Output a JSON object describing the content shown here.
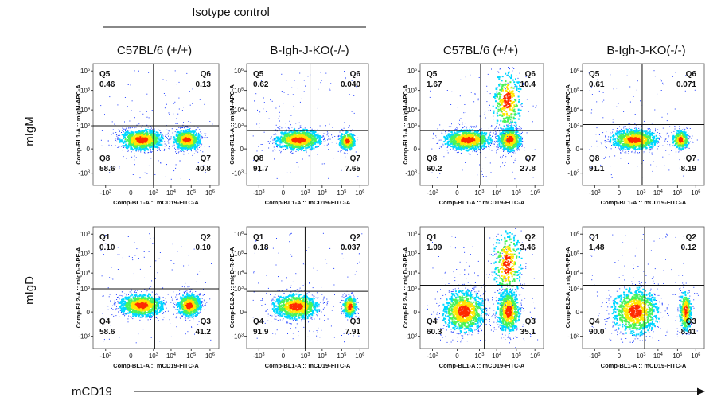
{
  "headers": {
    "group_title": "Isotype control",
    "columns": [
      "C57BL/6 (+/+)",
      "B-Igh-J-KO(-/-)",
      "C57BL/6 (+/+)",
      "B-Igh-J-KO(-/-)"
    ]
  },
  "row_labels": [
    "mIgM",
    "mIgD"
  ],
  "x_axis_arrow_label": "mCD19",
  "colors": {
    "density_low": "#1f3dff",
    "density_mid": "#00d7ff",
    "density_mid2": "#49f35a",
    "density_high": "#ffe600",
    "density_peak": "#ff2a00",
    "gate_line": "#111111"
  },
  "chart_data": [
    {
      "type": "scatter",
      "row": "mIgM",
      "column": 0,
      "xlabel": "Comp-BL1-A :: mCD19-FITC-A",
      "ylabel": "Comp-RL1-A :: mIgM-APC-A",
      "quadrants": [
        {
          "name": "Q5",
          "value": "0.46"
        },
        {
          "name": "Q6",
          "value": "0.13"
        },
        {
          "name": "Q8",
          "value": "58.6"
        },
        {
          "name": "Q7",
          "value": "40.8"
        }
      ]
    },
    {
      "type": "scatter",
      "row": "mIgM",
      "column": 1,
      "xlabel": "Comp-BL1-A :: mCD19-FITC-A",
      "ylabel": "Comp-RL1-A :: mIgM-APC-A",
      "quadrants": [
        {
          "name": "Q5",
          "value": "0.62"
        },
        {
          "name": "Q6",
          "value": "0.040"
        },
        {
          "name": "Q8",
          "value": "91.7"
        },
        {
          "name": "Q7",
          "value": "7.65"
        }
      ]
    },
    {
      "type": "scatter",
      "row": "mIgM",
      "column": 2,
      "xlabel": "Comp-BL1-A :: mCD19-FITC-A",
      "ylabel": "Comp-RL1-A :: mIgM-APC-A",
      "quadrants": [
        {
          "name": "Q5",
          "value": "1.67"
        },
        {
          "name": "Q6",
          "value": "10.4"
        },
        {
          "name": "Q8",
          "value": "60.2"
        },
        {
          "name": "Q7",
          "value": "27.8"
        }
      ]
    },
    {
      "type": "scatter",
      "row": "mIgM",
      "column": 3,
      "xlabel": "Comp-BL1-A :: mCD19-FITC-A",
      "ylabel": "Comp-RL1-A :: mIgM-APC-A",
      "quadrants": [
        {
          "name": "Q5",
          "value": "0.61"
        },
        {
          "name": "Q6",
          "value": "0.071"
        },
        {
          "name": "Q8",
          "value": "91.1"
        },
        {
          "name": "Q7",
          "value": "8.19"
        }
      ]
    },
    {
      "type": "scatter",
      "row": "mIgD",
      "column": 0,
      "xlabel": "Comp-BL1-A :: mCD19-FITC-A",
      "ylabel": "Comp-BL2-A :: mIgD-R-PE-A",
      "quadrants": [
        {
          "name": "Q1",
          "value": "0.10"
        },
        {
          "name": "Q2",
          "value": "0.10"
        },
        {
          "name": "Q4",
          "value": "58.6"
        },
        {
          "name": "Q3",
          "value": "41.2"
        }
      ]
    },
    {
      "type": "scatter",
      "row": "mIgD",
      "column": 1,
      "xlabel": "Comp-BL1-A :: mCD19-FITC-A",
      "ylabel": "Comp-BL2-A :: mIgD-R-PE-A",
      "quadrants": [
        {
          "name": "Q1",
          "value": "0.18"
        },
        {
          "name": "Q2",
          "value": "0.037"
        },
        {
          "name": "Q4",
          "value": "91.9"
        },
        {
          "name": "Q3",
          "value": "7.91"
        }
      ]
    },
    {
      "type": "scatter",
      "row": "mIgD",
      "column": 2,
      "xlabel": "Comp-BL1-A :: mCD19-FITC-A",
      "ylabel": "Comp-BL2-A :: mIgD-R-PE-A",
      "quadrants": [
        {
          "name": "Q1",
          "value": "1.09"
        },
        {
          "name": "Q2",
          "value": "3.46"
        },
        {
          "name": "Q4",
          "value": "60.3"
        },
        {
          "name": "Q3",
          "value": "35.1"
        }
      ]
    },
    {
      "type": "scatter",
      "row": "mIgD",
      "column": 3,
      "xlabel": "Comp-BL1-A :: mCD19-FITC-A",
      "ylabel": "Comp-BL2-A :: mIgD-R-PE-A",
      "quadrants": [
        {
          "name": "Q1",
          "value": "1.48"
        },
        {
          "name": "Q2",
          "value": "0.12"
        },
        {
          "name": "Q4",
          "value": "90.0"
        },
        {
          "name": "Q3",
          "value": "8.41"
        }
      ]
    }
  ]
}
